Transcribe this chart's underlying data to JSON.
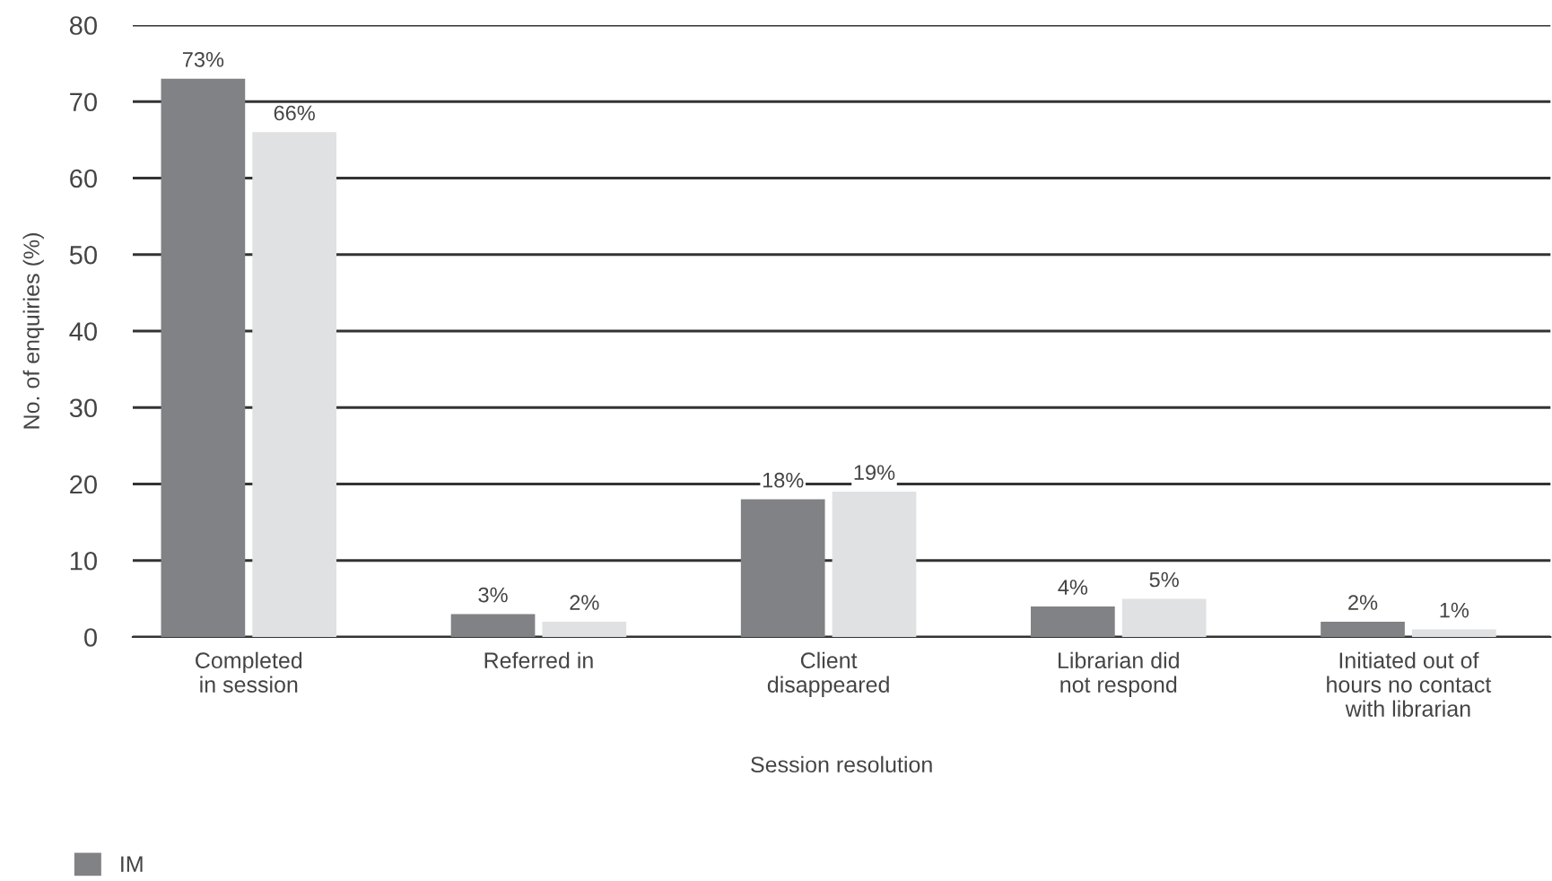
{
  "chart_data": {
    "type": "bar",
    "xlabel": "Session resolution",
    "ylabel": "No. of enquiries (%)",
    "categories": [
      "Completed\nin session",
      "Referred in",
      "Client\ndisappeared",
      "Librarian did\nnot respond",
      "Initiated out of\nhours no contact\nwith librarian"
    ],
    "series": [
      {
        "name": "IM",
        "color": "#818285",
        "values": [
          73,
          3,
          18,
          4,
          2
        ],
        "value_labels": [
          "73%",
          "3%",
          "18%",
          "4%",
          "2%"
        ]
      },
      {
        "color": "#e0e1e3",
        "values": [
          66,
          2,
          19,
          5,
          1
        ],
        "value_labels": [
          "66%",
          "2%",
          "19%",
          "5%",
          "1%"
        ]
      }
    ],
    "ylim": [
      0,
      80
    ],
    "yticks": [
      0,
      10,
      20,
      30,
      40,
      50,
      60,
      70,
      80
    ],
    "grid": "y",
    "legend": "bottom left"
  }
}
